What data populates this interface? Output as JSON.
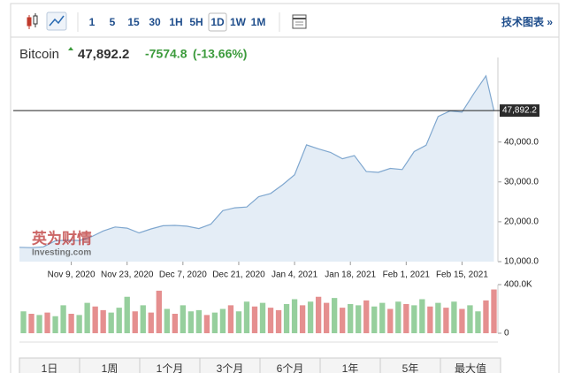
{
  "toolbar": {
    "intervals": [
      "1",
      "5",
      "15",
      "30",
      "1H",
      "5H",
      "1D",
      "1W",
      "1M"
    ],
    "selected": "1D",
    "link": "技术图表 »"
  },
  "chart_data": {
    "type": "line",
    "title": "Bitcoin",
    "price": {
      "value": 47892.2,
      "label": "47,892.2"
    },
    "change": -7574.8,
    "change_pct": {
      "value": -13.66,
      "label": "(-13.66%)"
    },
    "watermark": [
      "英为财情",
      "Investing.com"
    ],
    "x": [
      "2020-10-27",
      "2020-10-30",
      "2020-11-02",
      "2020-11-05",
      "2020-11-08",
      "2020-11-11",
      "2020-11-14",
      "2020-11-17",
      "2020-11-20",
      "2020-11-23",
      "2020-11-26",
      "2020-11-29",
      "2020-12-02",
      "2020-12-05",
      "2020-12-08",
      "2020-12-11",
      "2020-12-14",
      "2020-12-17",
      "2020-12-20",
      "2020-12-23",
      "2020-12-26",
      "2020-12-29",
      "2021-01-01",
      "2021-01-04",
      "2021-01-07",
      "2021-01-10",
      "2021-01-13",
      "2021-01-16",
      "2021-01-19",
      "2021-01-22",
      "2021-01-25",
      "2021-01-28",
      "2021-01-31",
      "2021-02-03",
      "2021-02-06",
      "2021-02-09",
      "2021-02-12",
      "2021-02-15",
      "2021-02-18",
      "2021-02-21",
      "2021-02-23"
    ],
    "series": [
      {
        "name": "Bitcoin",
        "color": "#7fa7cf",
        "fill": "#e4edf6",
        "values": [
          13600,
          13500,
          13700,
          15200,
          15400,
          15300,
          16200,
          17700,
          18700,
          18400,
          17200,
          18200,
          19000,
          19100,
          18900,
          18300,
          19400,
          22800,
          23500,
          23700,
          26300,
          27100,
          29300,
          31800,
          39300,
          38300,
          37400,
          35800,
          36600,
          32600,
          32400,
          33400,
          33100,
          37600,
          39200,
          46400,
          47800,
          47500,
          52200,
          56600,
          47892.2
        ]
      }
    ],
    "xlim": [
      "2020-10-27",
      "2021-02-24"
    ],
    "xticks": [
      {
        "value": "2020-11-09",
        "label": "Nov 9, 2020"
      },
      {
        "value": "2020-11-23",
        "label": "Nov 23, 2020"
      },
      {
        "value": "2020-12-07",
        "label": "Dec 7, 2020"
      },
      {
        "value": "2020-12-21",
        "label": "Dec 21, 2020"
      },
      {
        "value": "2021-01-04",
        "label": "Jan 4, 2021"
      },
      {
        "value": "2021-01-18",
        "label": "Jan 18, 2021"
      },
      {
        "value": "2021-02-01",
        "label": "Feb 1, 2021"
      },
      {
        "value": "2021-02-15",
        "label": "Feb 15, 2021"
      }
    ],
    "ylim": [
      10000,
      59000
    ],
    "yticks": [
      {
        "value": 10000,
        "label": "10,000.0"
      },
      {
        "value": 20000,
        "label": "20,000.0"
      },
      {
        "value": 30000,
        "label": "30,000.0"
      },
      {
        "value": 40000,
        "label": "40,000.0"
      }
    ],
    "grid": false,
    "volume": {
      "values": [
        180000,
        160000,
        150000,
        170000,
        140000,
        230000,
        160000,
        150000,
        250000,
        220000,
        190000,
        170000,
        210000,
        300000,
        180000,
        230000,
        170000,
        350000,
        200000,
        160000,
        230000,
        180000,
        190000,
        150000,
        170000,
        200000,
        230000,
        180000,
        260000,
        220000,
        250000,
        210000,
        190000,
        240000,
        280000,
        230000,
        260000,
        300000,
        250000,
        290000,
        210000,
        240000,
        230000,
        270000,
        220000,
        250000,
        200000,
        260000,
        240000,
        230000,
        280000,
        220000,
        250000,
        210000,
        260000,
        200000,
        230000,
        180000,
        270000,
        360000
      ],
      "colors": [
        "#96cf9d",
        "#e58f8f",
        "#96cf9d",
        "#e58f8f",
        "#96cf9d",
        "#96cf9d",
        "#e58f8f",
        "#96cf9d",
        "#96cf9d",
        "#e58f8f",
        "#e58f8f",
        "#96cf9d",
        "#96cf9d",
        "#96cf9d",
        "#e58f8f",
        "#96cf9d",
        "#e58f8f",
        "#e58f8f",
        "#96cf9d",
        "#e58f8f",
        "#96cf9d",
        "#96cf9d",
        "#96cf9d",
        "#e58f8f",
        "#96cf9d",
        "#96cf9d",
        "#e58f8f",
        "#96cf9d",
        "#96cf9d",
        "#e58f8f",
        "#96cf9d",
        "#e58f8f",
        "#e58f8f",
        "#96cf9d",
        "#96cf9d",
        "#e58f8f",
        "#96cf9d",
        "#e58f8f",
        "#e58f8f",
        "#96cf9d",
        "#e58f8f",
        "#96cf9d",
        "#96cf9d",
        "#e58f8f",
        "#96cf9d",
        "#96cf9d",
        "#e58f8f",
        "#96cf9d",
        "#e58f8f",
        "#96cf9d",
        "#96cf9d",
        "#e58f8f",
        "#96cf9d",
        "#e58f8f",
        "#96cf9d",
        "#e58f8f",
        "#96cf9d",
        "#96cf9d",
        "#e58f8f",
        "#e58f8f"
      ],
      "ylim": [
        0,
        400000
      ],
      "yticks": [
        0,
        {
          "value": 400000,
          "label": "400.0K"
        }
      ]
    },
    "ranges": [
      "1日",
      "1周",
      "1个月",
      "3个月",
      "6个月",
      "1年",
      "5年",
      "最大值"
    ]
  }
}
